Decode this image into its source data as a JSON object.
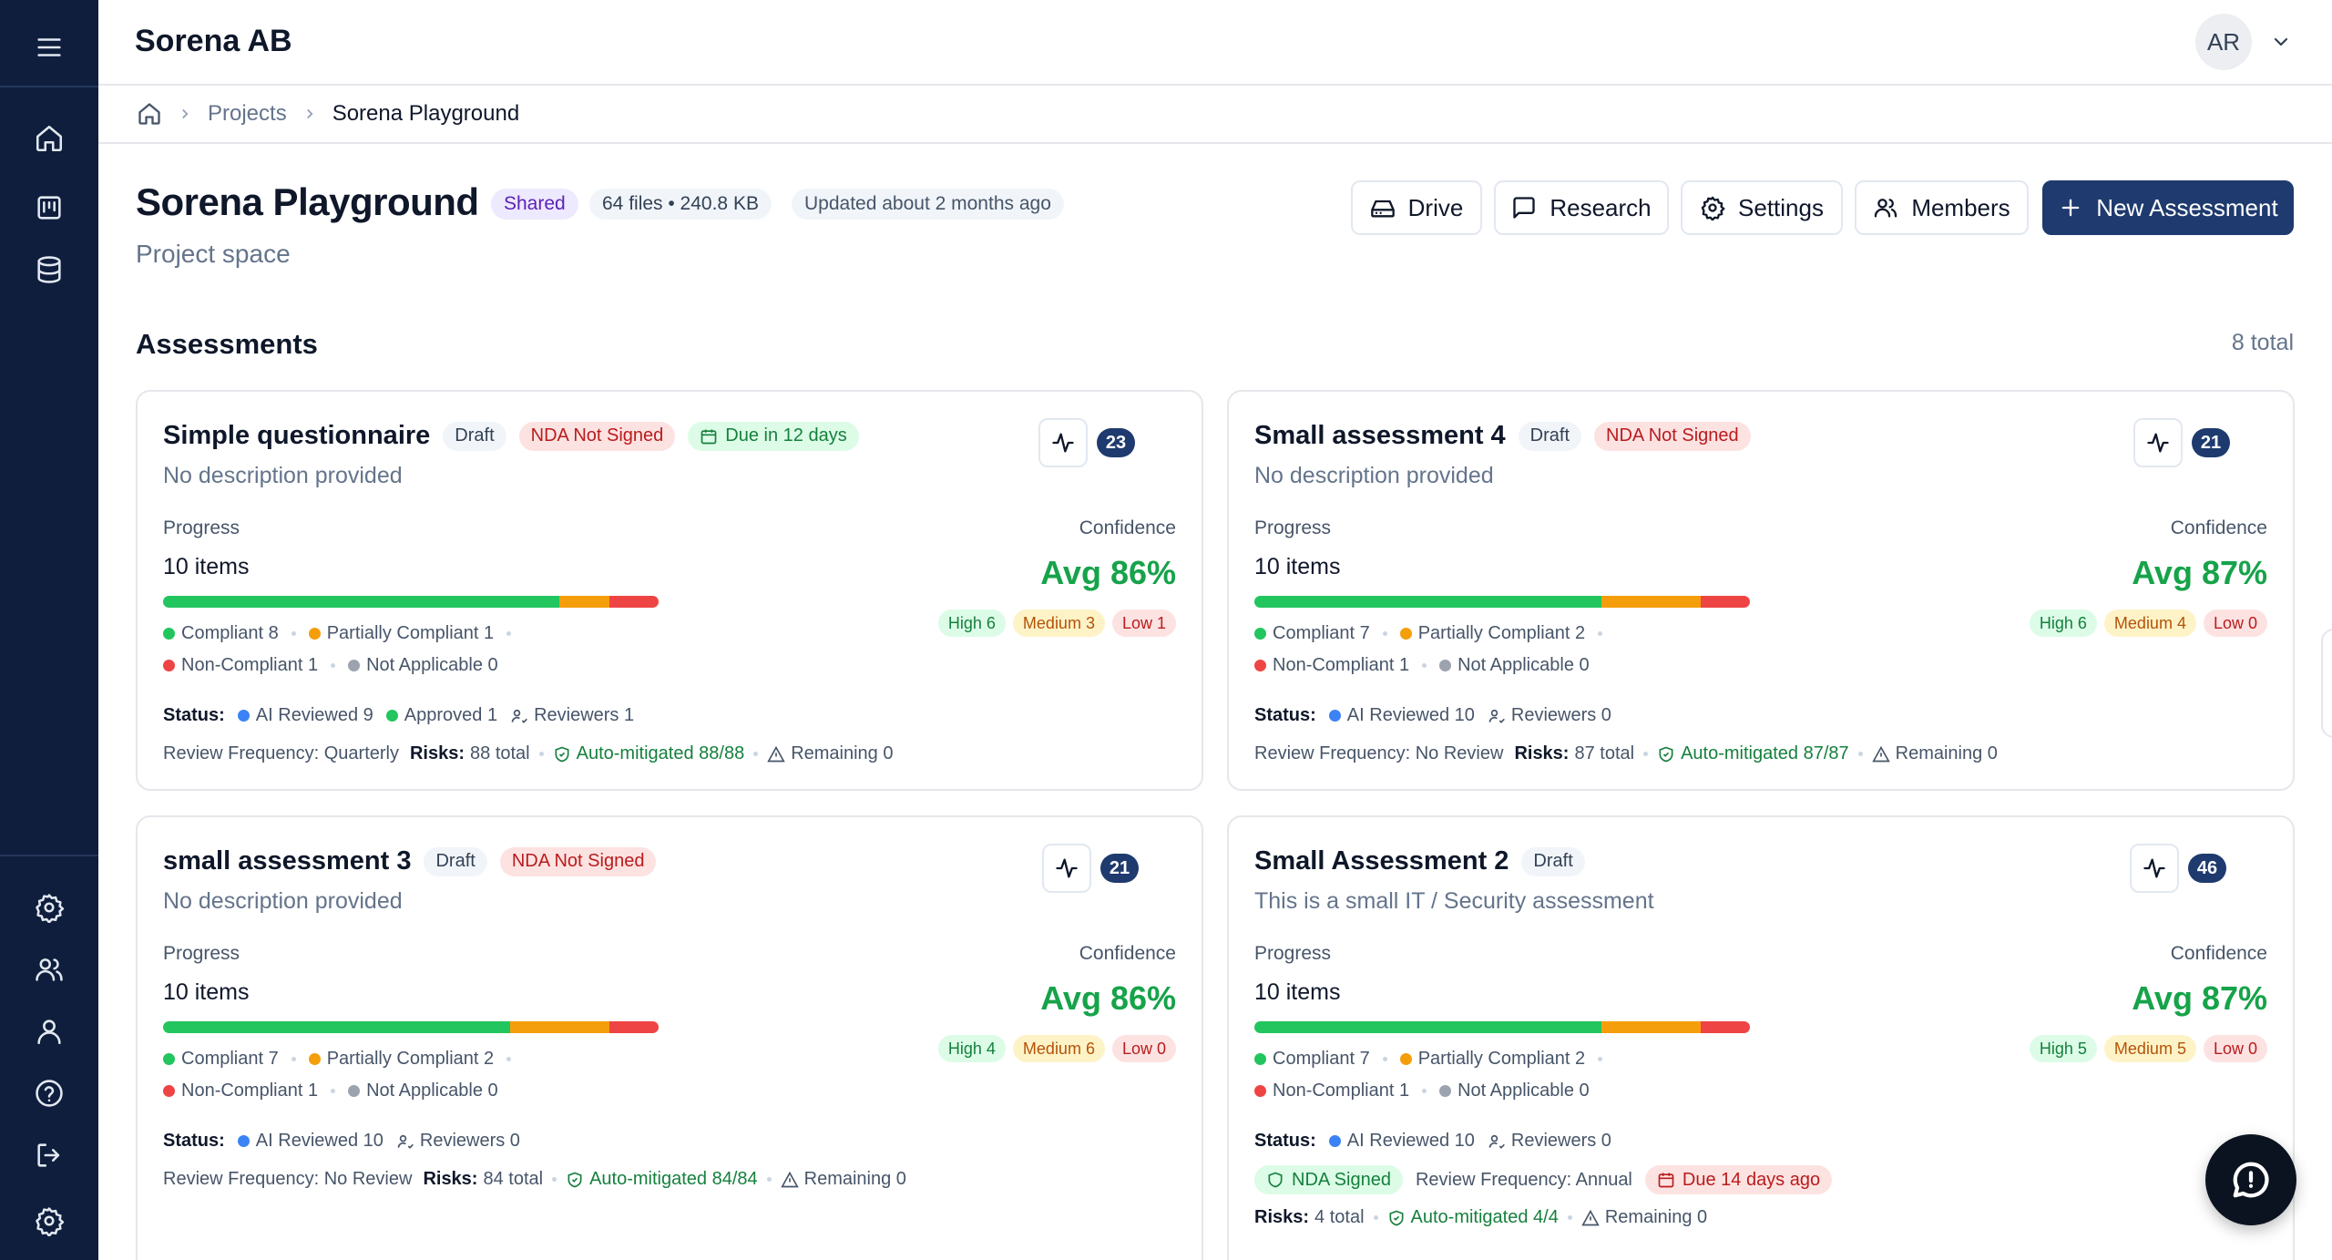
{
  "topbar": {
    "org_name": "Sorena AB",
    "avatar_initials": "AR"
  },
  "breadcrumb": {
    "projects": "Projects",
    "current": "Sorena Playground"
  },
  "project": {
    "title": "Sorena Playground",
    "shared_badge": "Shared",
    "files_info": "64 files • 240.8 KB",
    "updated": "Updated about 2 months ago",
    "subtitle": "Project space"
  },
  "actions": {
    "drive": "Drive",
    "research": "Research",
    "settings": "Settings",
    "members": "Members",
    "new_assessment": "New Assessment"
  },
  "section": {
    "title": "Assessments",
    "total": "8 total"
  },
  "labels": {
    "progress": "Progress",
    "confidence": "Confidence",
    "status": "Status:",
    "risks": "Risks:"
  },
  "cards": [
    {
      "title": "Simple questionnaire",
      "draft": "Draft",
      "nda": "NDA Not Signed",
      "due": "Due in 12 days",
      "description": "No description provided",
      "count": "23",
      "items": "10 items",
      "avg": "Avg 86%",
      "progress": {
        "compliant": 8,
        "partial": 1,
        "non": 1,
        "na": 0
      },
      "legend": {
        "compliant": "Compliant 8",
        "partial": "Partially Compliant 1",
        "non": "Non-Compliant 1",
        "na": "Not Applicable 0"
      },
      "conf": {
        "high": "High 6",
        "medium": "Medium 3",
        "low": "Low 1"
      },
      "status": {
        "ai": "AI Reviewed 9",
        "approved": "Approved 1",
        "reviewers": "Reviewers 1"
      },
      "review_frequency": "Review Frequency: Quarterly",
      "risks_total": "88 total",
      "auto": "Auto-mitigated 88/88",
      "remaining": "Remaining 0"
    },
    {
      "title": "Small assessment 4",
      "draft": "Draft",
      "nda": "NDA Not Signed",
      "description": "No description provided",
      "count": "21",
      "items": "10 items",
      "avg": "Avg 87%",
      "progress": {
        "compliant": 7,
        "partial": 2,
        "non": 1,
        "na": 0
      },
      "legend": {
        "compliant": "Compliant 7",
        "partial": "Partially Compliant 2",
        "non": "Non-Compliant 1",
        "na": "Not Applicable 0"
      },
      "conf": {
        "high": "High 6",
        "medium": "Medium 4",
        "low": "Low 0"
      },
      "status": {
        "ai": "AI Reviewed 10",
        "reviewers": "Reviewers 0"
      },
      "review_frequency": "Review Frequency: No Review",
      "risks_total": "87 total",
      "auto": "Auto-mitigated 87/87",
      "remaining": "Remaining 0"
    },
    {
      "title": "small assessment 3",
      "draft": "Draft",
      "nda": "NDA Not Signed",
      "description": "No description provided",
      "count": "21",
      "items": "10 items",
      "avg": "Avg 86%",
      "progress": {
        "compliant": 7,
        "partial": 2,
        "non": 1,
        "na": 0
      },
      "legend": {
        "compliant": "Compliant 7",
        "partial": "Partially Compliant 2",
        "non": "Non-Compliant 1",
        "na": "Not Applicable 0"
      },
      "conf": {
        "high": "High 4",
        "medium": "Medium 6",
        "low": "Low 0"
      },
      "status": {
        "ai": "AI Reviewed 10",
        "reviewers": "Reviewers 0"
      },
      "review_frequency": "Review Frequency: No Review",
      "risks_total": "84 total",
      "auto": "Auto-mitigated 84/84",
      "remaining": "Remaining 0"
    },
    {
      "title": "Small Assessment 2",
      "draft": "Draft",
      "description": "This is a small IT / Security assessment",
      "count": "46",
      "items": "10 items",
      "avg": "Avg 87%",
      "progress": {
        "compliant": 7,
        "partial": 2,
        "non": 1,
        "na": 0
      },
      "legend": {
        "compliant": "Compliant 7",
        "partial": "Partially Compliant 2",
        "non": "Non-Compliant 1",
        "na": "Not Applicable 0"
      },
      "conf": {
        "high": "High 5",
        "medium": "Medium 5",
        "low": "Low 0"
      },
      "status": {
        "ai": "AI Reviewed 10",
        "reviewers": "Reviewers 0"
      },
      "nda_signed": "NDA Signed",
      "review_frequency": "Review Frequency: Annual",
      "overdue": "Due 14 days ago",
      "risks_total": "4 total",
      "auto": "Auto-mitigated 4/4",
      "remaining": "Remaining 0"
    }
  ],
  "colors": {
    "compliant": "#22c55e",
    "partial": "#f59e0b",
    "non": "#ef4444",
    "na": "#9ca3af",
    "ai": "#3b82f6",
    "primary": "#1e3a6e"
  }
}
